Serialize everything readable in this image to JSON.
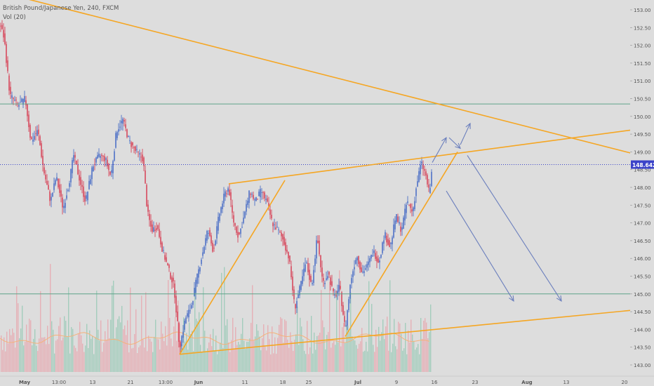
{
  "window": {
    "instrument": "British Pound/Japanese Yen, 240, FXCM",
    "volume_indicator": "Vol (20)",
    "price_badge": "148.642"
  },
  "colors": {
    "background": "#dddddd",
    "candle_up": "#3a62c4",
    "candle_down": "#d6334a",
    "trendline": "#f5a623",
    "arrow": "#6b7fbd",
    "horizontal_level": "#5fa38a",
    "current_price_line": "#3b43c9",
    "volume_up": "#8fc7b0",
    "volume_down": "#e8a0a8",
    "axis_text": "#555555"
  },
  "chart_data": {
    "type": "candlestick",
    "title": "British Pound/Japanese Yen, 240, FXCM",
    "indicator": "Vol (20)",
    "ylim": [
      142.8,
      153.2
    ],
    "y_ticks": [
      143.0,
      143.5,
      144.0,
      144.5,
      145.0,
      145.5,
      146.0,
      146.5,
      147.0,
      147.5,
      148.0,
      148.5,
      149.0,
      149.5,
      150.0,
      150.5,
      151.0,
      151.5,
      152.0,
      152.5,
      153.0
    ],
    "x_ticks": [
      "May",
      "13:00",
      "13",
      "21",
      "13:00",
      "Jun",
      "11",
      "18",
      "25",
      "Jul",
      "9",
      "16",
      "23",
      "Aug",
      "13",
      "20"
    ],
    "bold_x_ticks": [
      "May",
      "Jun",
      "Jul",
      "Aug"
    ],
    "last_price": 148.642,
    "horizontal_levels": [
      150.35,
      145.0
    ],
    "close_path": [
      {
        "t": 0,
        "p": 152.6
      },
      {
        "t": 6,
        "p": 152.2
      },
      {
        "t": 14,
        "p": 150.6
      },
      {
        "t": 26,
        "p": 150.3
      },
      {
        "t": 36,
        "p": 150.5
      },
      {
        "t": 44,
        "p": 149.3
      },
      {
        "t": 54,
        "p": 149.6
      },
      {
        "t": 62,
        "p": 148.5
      },
      {
        "t": 72,
        "p": 147.6
      },
      {
        "t": 80,
        "p": 148.3
      },
      {
        "t": 90,
        "p": 147.4
      },
      {
        "t": 98,
        "p": 148.1
      },
      {
        "t": 105,
        "p": 148.9
      },
      {
        "t": 115,
        "p": 148.1
      },
      {
        "t": 122,
        "p": 147.6
      },
      {
        "t": 132,
        "p": 148.6
      },
      {
        "t": 142,
        "p": 148.9
      },
      {
        "t": 150,
        "p": 148.8
      },
      {
        "t": 158,
        "p": 148.3
      },
      {
        "t": 166,
        "p": 149.6
      },
      {
        "t": 175,
        "p": 149.9
      },
      {
        "t": 184,
        "p": 149.3
      },
      {
        "t": 194,
        "p": 149.0
      },
      {
        "t": 204,
        "p": 148.8
      },
      {
        "t": 210,
        "p": 147.3
      },
      {
        "t": 216,
        "p": 146.8
      },
      {
        "t": 224,
        "p": 146.9
      },
      {
        "t": 232,
        "p": 146.2
      },
      {
        "t": 240,
        "p": 145.7
      },
      {
        "t": 248,
        "p": 145.2
      },
      {
        "t": 256,
        "p": 143.5
      },
      {
        "t": 264,
        "p": 144.3
      },
      {
        "t": 272,
        "p": 144.6
      },
      {
        "t": 280,
        "p": 145.4
      },
      {
        "t": 288,
        "p": 146.1
      },
      {
        "t": 296,
        "p": 146.8
      },
      {
        "t": 304,
        "p": 146.2
      },
      {
        "t": 312,
        "p": 147.2
      },
      {
        "t": 320,
        "p": 147.8
      },
      {
        "t": 326,
        "p": 148.0
      },
      {
        "t": 332,
        "p": 147.1
      },
      {
        "t": 340,
        "p": 146.6
      },
      {
        "t": 348,
        "p": 147.2
      },
      {
        "t": 356,
        "p": 147.9
      },
      {
        "t": 364,
        "p": 147.6
      },
      {
        "t": 372,
        "p": 147.9
      },
      {
        "t": 380,
        "p": 147.6
      },
      {
        "t": 388,
        "p": 147.0
      },
      {
        "t": 396,
        "p": 146.8
      },
      {
        "t": 404,
        "p": 146.5
      },
      {
        "t": 412,
        "p": 146.0
      },
      {
        "t": 420,
        "p": 144.6
      },
      {
        "t": 428,
        "p": 145.2
      },
      {
        "t": 436,
        "p": 145.9
      },
      {
        "t": 444,
        "p": 145.2
      },
      {
        "t": 452,
        "p": 146.6
      },
      {
        "t": 460,
        "p": 145.3
      },
      {
        "t": 468,
        "p": 145.6
      },
      {
        "t": 476,
        "p": 144.9
      },
      {
        "t": 484,
        "p": 145.2
      },
      {
        "t": 492,
        "p": 144.0
      },
      {
        "t": 500,
        "p": 145.4
      },
      {
        "t": 508,
        "p": 146.1
      },
      {
        "t": 516,
        "p": 145.6
      },
      {
        "t": 524,
        "p": 145.8
      },
      {
        "t": 532,
        "p": 146.2
      },
      {
        "t": 540,
        "p": 145.9
      },
      {
        "t": 548,
        "p": 146.7
      },
      {
        "t": 556,
        "p": 146.3
      },
      {
        "t": 564,
        "p": 147.2
      },
      {
        "t": 572,
        "p": 146.8
      },
      {
        "t": 580,
        "p": 147.6
      },
      {
        "t": 588,
        "p": 147.3
      },
      {
        "t": 594,
        "p": 148.1
      },
      {
        "t": 600,
        "p": 148.7
      },
      {
        "t": 606,
        "p": 148.4
      },
      {
        "t": 612,
        "p": 147.8
      },
      {
        "t": 616,
        "p": 148.6
      }
    ],
    "trendlines": [
      {
        "name": "upper-descending",
        "p1": {
          "t": 0,
          "p": 153.5
        },
        "p2": {
          "t": 932,
          "p": 148.8
        }
      },
      {
        "name": "channel-top-right",
        "p1": {
          "t": 326,
          "p": 148.1
        },
        "p2": {
          "t": 932,
          "p": 149.7
        }
      },
      {
        "name": "channel-bottom",
        "p1": {
          "t": 256,
          "p": 143.3
        },
        "p2": {
          "t": 932,
          "p": 144.6
        }
      },
      {
        "name": "rising-left",
        "p1": {
          "t": 256,
          "p": 143.3
        },
        "p2": {
          "t": 406,
          "p": 148.2
        }
      },
      {
        "name": "rising-right",
        "p1": {
          "t": 492,
          "p": 143.8
        },
        "p2": {
          "t": 652,
          "p": 149.0
        }
      }
    ],
    "arrows": [
      {
        "name": "up-arrow-1",
        "from": {
          "t": 616,
          "p": 148.7
        },
        "to": {
          "t": 636,
          "p": 149.4
        }
      },
      {
        "name": "down-arrow-1",
        "from": {
          "t": 640,
          "p": 149.4
        },
        "to": {
          "t": 656,
          "p": 149.1
        }
      },
      {
        "name": "up-arrow-2",
        "from": {
          "t": 656,
          "p": 149.2
        },
        "to": {
          "t": 670,
          "p": 149.8
        }
      },
      {
        "name": "down-arrow-long-1",
        "from": {
          "t": 636,
          "p": 147.9
        },
        "to": {
          "t": 732,
          "p": 144.8
        }
      },
      {
        "name": "down-arrow-long-2",
        "from": {
          "t": 666,
          "p": 148.9
        },
        "to": {
          "t": 800,
          "p": 144.8
        }
      }
    ]
  }
}
